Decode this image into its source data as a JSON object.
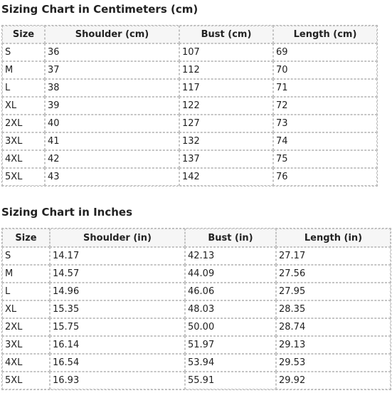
{
  "cm_chart": {
    "title": "Sizing Chart in Centimeters (cm)",
    "headers": [
      "Size",
      "Shoulder (cm)",
      "Bust (cm)",
      "Length (cm)"
    ],
    "rows": [
      [
        "S",
        "36",
        "107",
        "69"
      ],
      [
        "M",
        "37",
        "112",
        "70"
      ],
      [
        "L",
        "38",
        "117",
        "71"
      ],
      [
        "XL",
        "39",
        "122",
        "72"
      ],
      [
        "2XL",
        "40",
        "127",
        "73"
      ],
      [
        "3XL",
        "41",
        "132",
        "74"
      ],
      [
        "4XL",
        "42",
        "137",
        "75"
      ],
      [
        "5XL",
        "43",
        "142",
        "76"
      ]
    ]
  },
  "in_chart": {
    "title": "Sizing Chart in Inches",
    "headers": [
      "Size",
      "Shoulder (in)",
      "Bust (in)",
      "Length (in)"
    ],
    "rows": [
      [
        "S",
        "14.17",
        "42.13",
        "27.17"
      ],
      [
        "M",
        "14.57",
        "44.09",
        "27.56"
      ],
      [
        "L",
        "14.96",
        "46.06",
        "27.95"
      ],
      [
        "XL",
        "15.35",
        "48.03",
        "28.35"
      ],
      [
        "2XL",
        "15.75",
        "50.00",
        "28.74"
      ],
      [
        "3XL",
        "16.14",
        "51.97",
        "29.13"
      ],
      [
        "4XL",
        "16.54",
        "53.94",
        "29.53"
      ],
      [
        "5XL",
        "16.93",
        "55.91",
        "29.92"
      ]
    ]
  }
}
